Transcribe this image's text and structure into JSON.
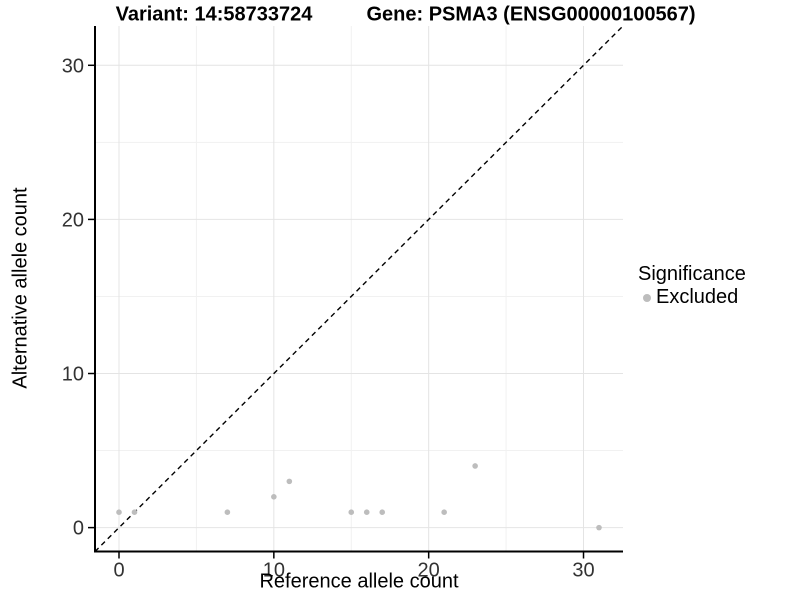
{
  "chart_data": {
    "type": "scatter",
    "titles": {
      "variant": "Variant: 14:58733724",
      "gene": "Gene: PSMA3 (ENSG00000100567)"
    },
    "xlabel": "Reference allele count",
    "ylabel": "Alternative allele count",
    "xlim": [
      -1.55,
      32.55
    ],
    "ylim": [
      -1.55,
      32.55
    ],
    "x_ticks": [
      0,
      10,
      20,
      30
    ],
    "y_ticks": [
      0,
      10,
      20,
      30
    ],
    "x_minor_ticks": [
      5,
      15,
      25
    ],
    "y_minor_ticks": [
      5,
      15,
      25
    ],
    "grid": true,
    "series": [
      {
        "name": "Excluded",
        "color": "#bdbdbd",
        "points": [
          [
            0,
            1
          ],
          [
            1,
            1
          ],
          [
            7,
            1
          ],
          [
            10,
            2
          ],
          [
            11,
            3
          ],
          [
            15,
            1
          ],
          [
            16,
            1
          ],
          [
            17,
            1
          ],
          [
            21,
            1
          ],
          [
            23,
            4
          ],
          [
            31,
            0
          ]
        ]
      }
    ],
    "reference_line": {
      "slope": 1,
      "intercept": 0,
      "style": "dashed",
      "color": "#000000"
    },
    "legend": {
      "title": "Significance",
      "position": "right",
      "items": [
        {
          "label": "Excluded",
          "color": "#bdbdbd",
          "marker": "circle"
        }
      ]
    },
    "colors": {
      "grid_major": "#e4e4e4",
      "grid_minor": "#f1f1f1",
      "axis_line": "#000000",
      "tick_label": "#333333",
      "point": "#bdbdbd"
    }
  }
}
